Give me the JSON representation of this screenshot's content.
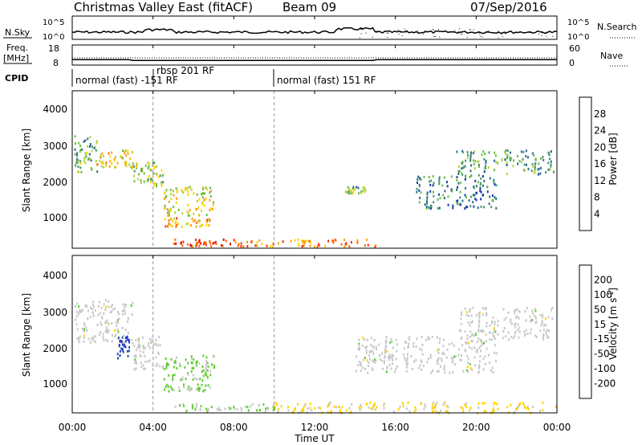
{
  "header": {
    "title": "Christmas Valley East (fitACF)",
    "beam": "Beam 09",
    "date": "07/Sep/2016"
  },
  "top_panels": {
    "nsky_label": "N.Sky",
    "nsky_ticks": [
      "10^5",
      "10^0"
    ],
    "nsky_right_ticks": [
      "10^5",
      "10^0"
    ],
    "nsearch_label": "N.Search",
    "freq_label": "Freq.",
    "freq_unit": "[MHz]",
    "freq_ticks": [
      "18",
      "8"
    ],
    "nave_ticks": [
      "60",
      "0"
    ],
    "nave_label": "Nave",
    "cpid_label": "CPID",
    "cpid_segments": [
      {
        "label": "normal (fast) -151 RF",
        "start_hr": 0
      },
      {
        "label": "rbsp 201 RF",
        "start_hr": 4
      },
      {
        "label": "normal (fast) 151 RF",
        "start_hr": 10
      }
    ]
  },
  "power_panel": {
    "ylabel": "Slant Range [km]",
    "yticks": [
      "1000",
      "2000",
      "3000",
      "4000"
    ],
    "colorbar_label": "Power [dB]",
    "colorbar_ticks": [
      "4",
      "8",
      "12",
      "16",
      "20",
      "24",
      "28"
    ],
    "colorbar_colors": [
      "#0000ff",
      "#1c3fa8",
      "#2e6e8e",
      "#4a9a6a",
      "#6bbd45",
      "#b8d23a",
      "#ffd000",
      "#ffa000",
      "#ff6a00",
      "#ff2a00",
      "#e00000"
    ]
  },
  "velocity_panel": {
    "ylabel": "Slant Range [km]",
    "yticks": [
      "1000",
      "2000",
      "3000",
      "4000"
    ],
    "colorbar_label": "Velocity [m s^-1]",
    "colorbar_ticks": [
      "200",
      "100",
      "50",
      "15",
      "-15",
      "-50",
      "-100",
      "-200"
    ],
    "colorbar_colors": [
      "#1d2ad8",
      "#2a55a0",
      "#1f8a3a",
      "#5ccc2e",
      "#c8c8c8",
      "#ffd000",
      "#ff9a00",
      "#ff6400",
      "#e81010"
    ]
  },
  "xaxis": {
    "label": "Time UT",
    "ticks": [
      "00:00",
      "04:00",
      "08:00",
      "12:00",
      "16:00",
      "20:00",
      "00:00"
    ]
  },
  "chart_data": {
    "type": "heatmap",
    "title": "Christmas Valley East (fitACF) Beam 09",
    "xlabel": "Time UT",
    "ylabel": "Slant Range [km]",
    "x_range_hours": [
      0,
      24
    ],
    "y_range_km": [
      180,
      4500
    ],
    "power_db_range": [
      0,
      30
    ],
    "velocity_range": [
      -250,
      250
    ],
    "cpid_changes_hours": [
      4,
      10
    ],
    "freq_mhz": [
      {
        "from_hr": 0,
        "to_hr": 2.8,
        "value": 10.7
      },
      {
        "from_hr": 3.0,
        "to_hr": 14.9,
        "value": 10.3
      },
      {
        "from_hr": 15.1,
        "to_hr": 24,
        "value": 10.7
      }
    ],
    "power_regions": [
      {
        "t0": 0.1,
        "t1": 1.2,
        "r0": 2300,
        "r1": 3300,
        "db": 12
      },
      {
        "t0": 1.2,
        "t1": 3.0,
        "r0": 2400,
        "r1": 2900,
        "db": 18
      },
      {
        "t0": 3.0,
        "t1": 4.5,
        "r0": 1900,
        "r1": 2600,
        "db": 14
      },
      {
        "t0": 4.5,
        "t1": 7.0,
        "r0": 1100,
        "r1": 1900,
        "db": 16
      },
      {
        "t0": 4.5,
        "t1": 6.8,
        "r0": 800,
        "r1": 1050,
        "db": 20
      },
      {
        "t0": 5.0,
        "t1": 8.0,
        "r0": 250,
        "r1": 450,
        "db": 26
      },
      {
        "t0": 8.0,
        "t1": 15.0,
        "r0": 250,
        "r1": 450,
        "db": 22
      },
      {
        "t0": 13.5,
        "t1": 14.5,
        "r0": 1700,
        "r1": 1900,
        "db": 12
      },
      {
        "t0": 17.0,
        "t1": 21.0,
        "r0": 1300,
        "r1": 2200,
        "db": 8
      },
      {
        "t0": 19.0,
        "t1": 23.8,
        "r0": 2200,
        "r1": 2900,
        "db": 10
      }
    ],
    "velocity_regions": [
      {
        "t0": 0.1,
        "t1": 3.0,
        "r0": 2100,
        "r1": 3300,
        "v": 0
      },
      {
        "t0": 2.2,
        "t1": 2.8,
        "r0": 1700,
        "r1": 2300,
        "v": 200
      },
      {
        "t0": 3.0,
        "t1": 4.5,
        "r0": 1400,
        "r1": 2300,
        "v": 0
      },
      {
        "t0": 4.5,
        "t1": 7.0,
        "r0": 1100,
        "r1": 1800,
        "v": 40
      },
      {
        "t0": 4.5,
        "t1": 6.8,
        "r0": 800,
        "r1": 1000,
        "v": 30
      },
      {
        "t0": 5.0,
        "t1": 10.0,
        "r0": 250,
        "r1": 450,
        "v": 20
      },
      {
        "t0": 10.0,
        "t1": 24.0,
        "r0": 200,
        "r1": 500,
        "v": -40
      },
      {
        "t0": 14.0,
        "t1": 21.0,
        "r0": 1300,
        "r1": 2300,
        "v": 0
      },
      {
        "t0": 19.0,
        "t1": 23.8,
        "r0": 2200,
        "r1": 3100,
        "v": 0
      }
    ]
  }
}
